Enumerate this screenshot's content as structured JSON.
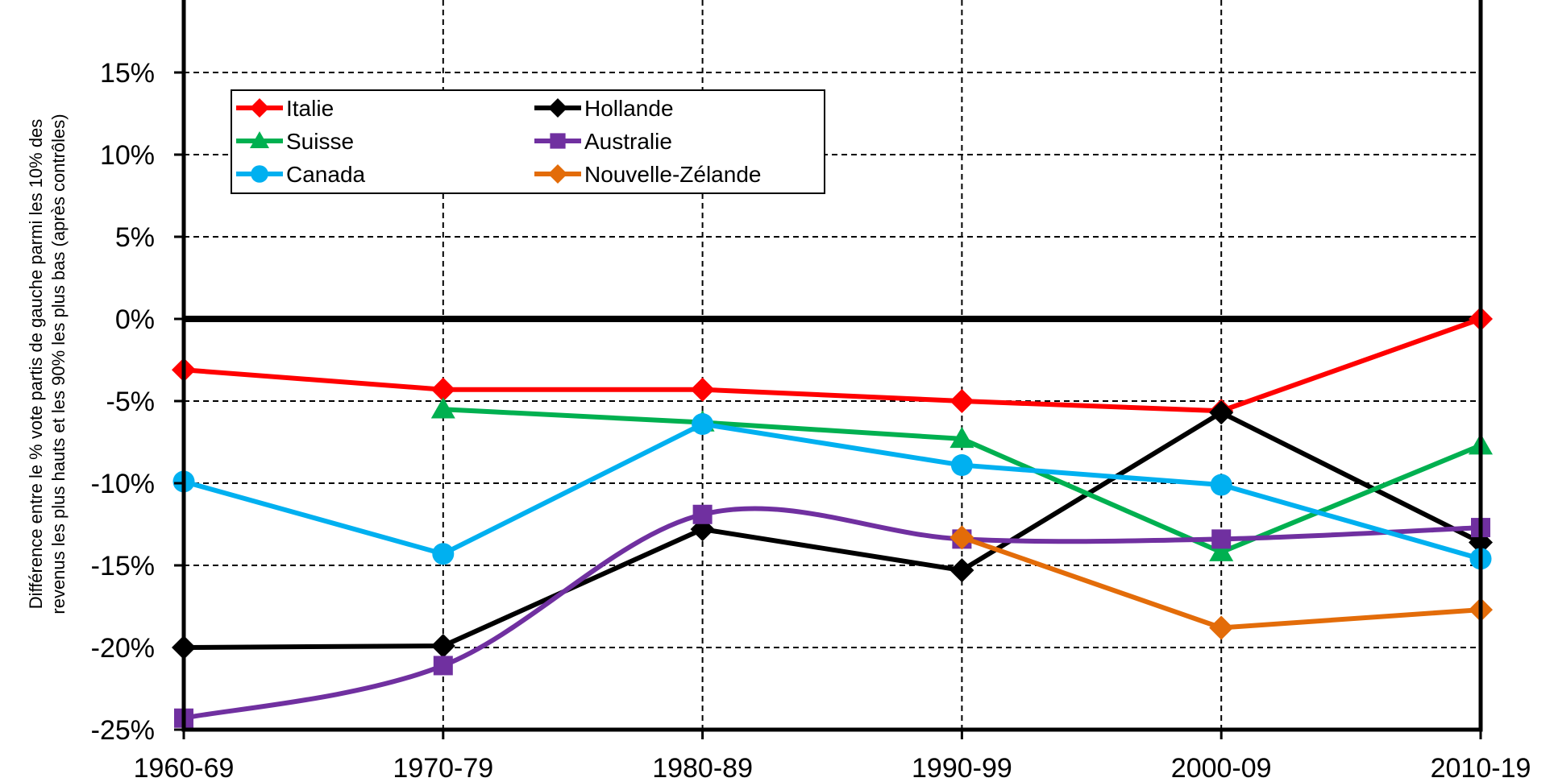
{
  "chart_data": {
    "type": "line",
    "title": "",
    "xlabel": "",
    "ylabel_lines": [
      "Différence entre le % vote partis de gauche parmi les 10% des",
      "revenus les plus hauts et les 90% les plus bas (après contrôles)"
    ],
    "categories": [
      "1960-69",
      "1970-79",
      "1980-89",
      "1990-99",
      "2000-09",
      "2010-19"
    ],
    "ylim": [
      -0.25,
      0.15
    ],
    "yticks": [
      {
        "value": 0.15,
        "label": "15%"
      },
      {
        "value": 0.1,
        "label": "10%"
      },
      {
        "value": 0.05,
        "label": "5%"
      },
      {
        "value": 0.0,
        "label": "0%"
      },
      {
        "value": -0.05,
        "label": "-5%"
      },
      {
        "value": -0.1,
        "label": "-10%"
      },
      {
        "value": -0.15,
        "label": "-15%"
      },
      {
        "value": -0.2,
        "label": "-20%"
      },
      {
        "value": -0.25,
        "label": "-25%"
      }
    ],
    "grid": true,
    "legend_position": "top-left",
    "series": [
      {
        "name": "Italie",
        "color": "#FF0000",
        "marker": "diamond",
        "smooth": false,
        "values": [
          -0.031,
          -0.043,
          -0.043,
          -0.05,
          -0.056,
          0.0
        ]
      },
      {
        "name": "Hollande",
        "color": "#000000",
        "marker": "diamond",
        "smooth": false,
        "values": [
          -0.2,
          -0.199,
          -0.128,
          -0.153,
          -0.057,
          -0.136
        ]
      },
      {
        "name": "Suisse",
        "color": "#00B050",
        "marker": "triangle",
        "smooth": false,
        "values": [
          null,
          -0.055,
          -0.063,
          -0.073,
          -0.142,
          -0.077
        ]
      },
      {
        "name": "Australie",
        "color": "#7030A0",
        "marker": "square",
        "smooth": true,
        "values": [
          -0.243,
          -0.211,
          -0.119,
          -0.134,
          -0.134,
          -0.127
        ]
      },
      {
        "name": "Canada",
        "color": "#00B0F0",
        "marker": "circle",
        "smooth": false,
        "values": [
          -0.099,
          -0.143,
          -0.064,
          -0.089,
          -0.101,
          -0.146
        ]
      },
      {
        "name": "Nouvelle-Zélande",
        "color": "#E36C09",
        "marker": "diamond",
        "smooth": false,
        "values": [
          null,
          null,
          null,
          -0.133,
          -0.188,
          -0.177
        ]
      }
    ]
  }
}
